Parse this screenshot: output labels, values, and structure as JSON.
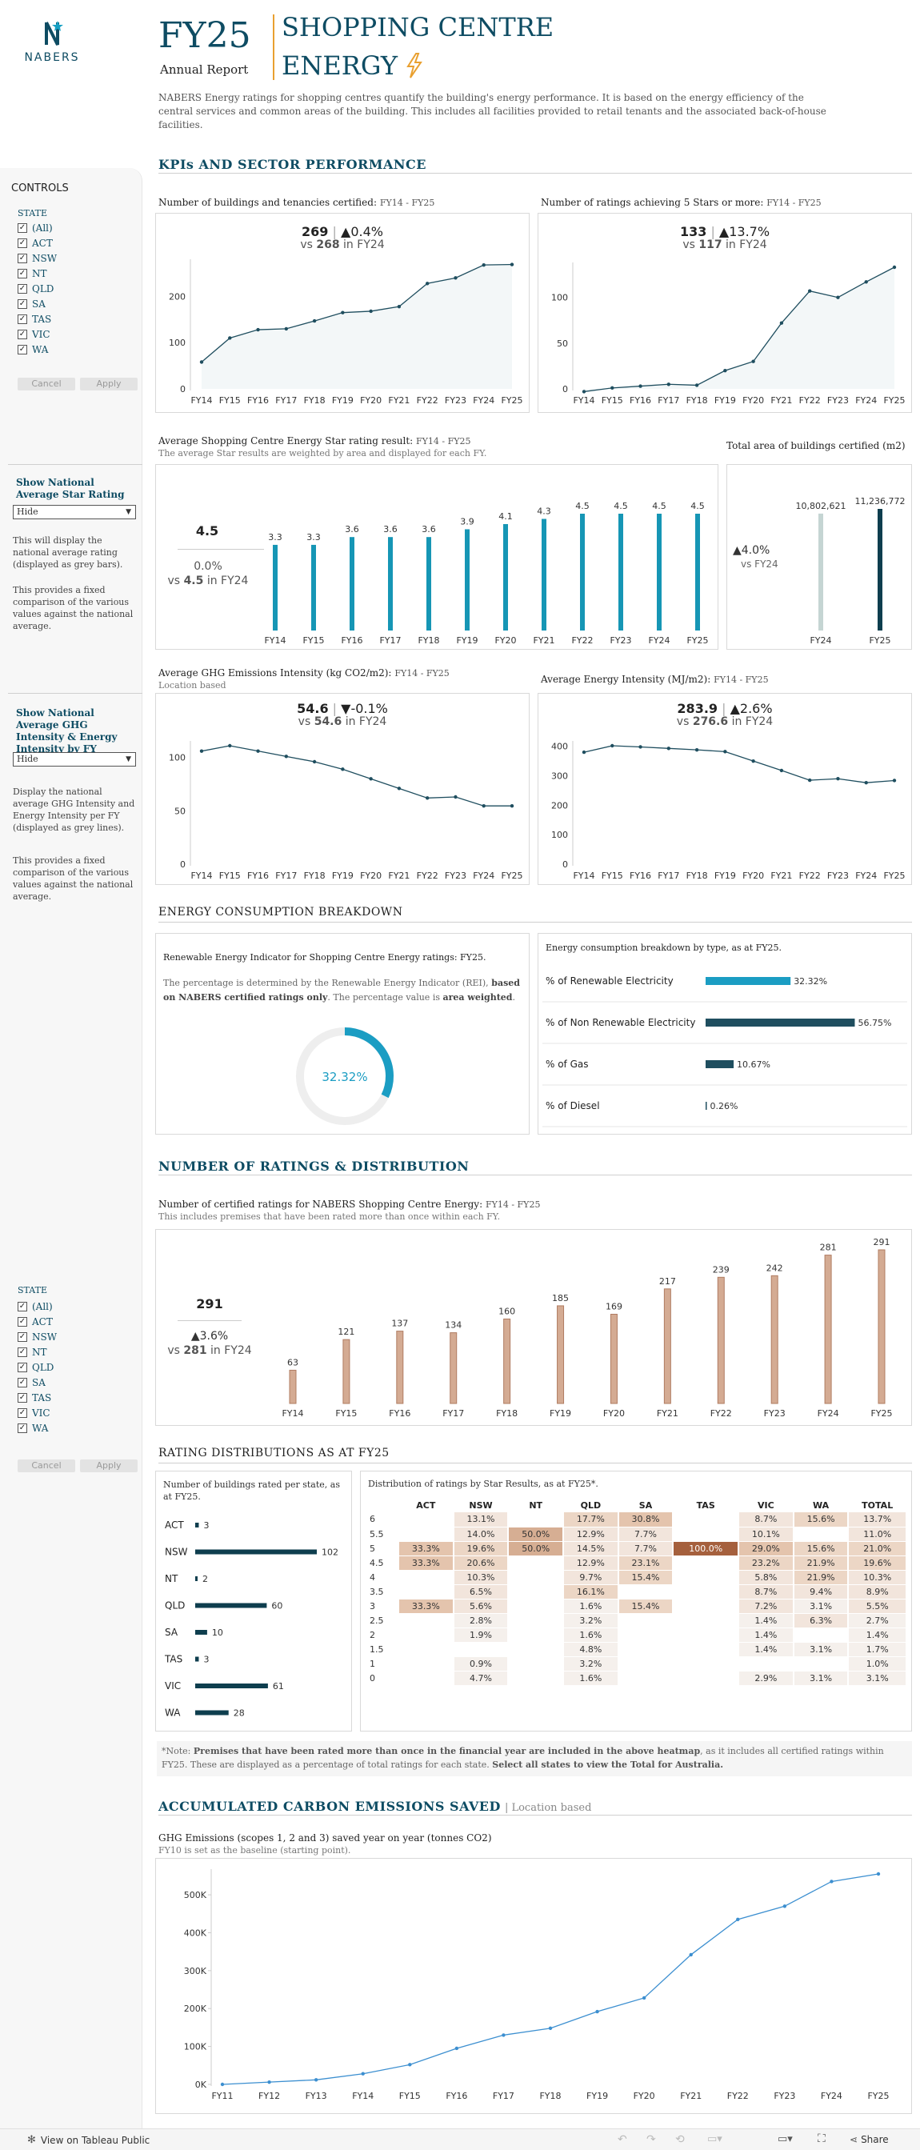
{
  "header": {
    "logo_text": "NABERS",
    "fy": "FY25",
    "report": "Annual Report",
    "title_line1": "SHOPPING CENTRE",
    "title_line2": "ENERGY",
    "intro": "NABERS Energy ratings for shopping centres quantify the building's energy performance. It is based on the energy efficiency of the central services and common areas of the building. This includes all facilities provided to retail tenants and the associated back-of-house facilities."
  },
  "sections": {
    "kpi": "KPIs AND SECTOR PERFORMANCE",
    "energy": "ENERGY CONSUMPTION BREAKDOWN",
    "ratings": "NUMBER OF RATINGS & DISTRIBUTION",
    "distributions": "RATING DISTRIBUTIONS AS AT FY25",
    "carbon": "ACCUMULATED CARBON EMISSIONS SAVED",
    "carbon_suffix": "| Location based"
  },
  "sidebar": {
    "controls": "CONTROLS",
    "state_label": "STATE",
    "states": [
      "(All)",
      "ACT",
      "NSW",
      "NT",
      "QLD",
      "SA",
      "TAS",
      "VIC",
      "WA"
    ],
    "cancel": "Cancel",
    "apply": "Apply",
    "star_heading": "Show National Average Star Rating",
    "star_dropdown": "Hide",
    "star_p1": "This will display the national average rating (displayed as grey bars).",
    "star_p2": "This provides a fixed comparison of the various values against the national average.",
    "ghg_heading": "Show National Average GHG Intensity & Energy Intensity by FY",
    "ghg_dropdown": "Hide",
    "ghg_p1": "Display the national average GHG Intensity and Energy Intensity per FY (displayed as grey lines).",
    "ghg_p2": "This provides a fixed comparison of the various values against the national average."
  },
  "kpi_buildings": {
    "title": "Number of buildings and tenancies certified:",
    "range": "FY14 - FY25",
    "value": "269",
    "change": "▲0.4%",
    "vs_prefix": "vs",
    "vs_value": "268",
    "vs_suffix": "in FY24"
  },
  "kpi_5stars": {
    "title": "Number of ratings achieving 5 Stars or more:",
    "range": "FY14 - FY25",
    "value": "133",
    "change": "▲13.7%",
    "vs_prefix": "vs",
    "vs_value": "117",
    "vs_suffix": "in FY24"
  },
  "star_rating": {
    "title": "Average Shopping Centre Energy Star rating result:",
    "range": "FY14 - FY25",
    "sub": "The average Star results are weighted by area and displayed for each FY.",
    "value": "4.5",
    "change": "0.0%",
    "vs_prefix": "vs",
    "vs_value": "4.5",
    "vs_suffix": "in FY24"
  },
  "area": {
    "title": "Total area of buildings certified (m2)",
    "change": "▲4.0%",
    "vs": "vs FY24"
  },
  "ghg": {
    "title": "Average GHG Emissions Intensity (kg CO2/m2):",
    "range": "FY14 - FY25",
    "sub": "Location based",
    "value": "54.6",
    "change": "▼-0.1%",
    "vs_prefix": "vs",
    "vs_value": "54.6",
    "vs_suffix": "in FY24"
  },
  "energy_int": {
    "title": "Average Energy Intensity (MJ/m2):",
    "range": "FY14 - FY25",
    "value": "283.9",
    "change": "▲2.6%",
    "vs_prefix": "vs",
    "vs_value": "276.6",
    "vs_suffix": "in FY24"
  },
  "renewable": {
    "title": "Renewable Energy Indicator for Shopping Centre Energy ratings:",
    "title_fy": "FY25.",
    "desc_a": "The percentage is determined by the Renewable Energy Indicator (REI),",
    "desc_b": "based on NABERS certified ratings only",
    "desc_c": ". The percentage value is",
    "desc_d": "area weighted",
    "desc_e": ".",
    "value_label": "32.32%",
    "fraction": 0.3232
  },
  "breakdown": {
    "title": "Energy consumption breakdown by type, as at",
    "title_fy": "FY25.",
    "rows": [
      {
        "label": "% of Renewable Electricity",
        "value": 32.32,
        "text": "32.32%",
        "color": "#1b9dc3"
      },
      {
        "label": "% of Non Renewable Electricity",
        "value": 56.75,
        "text": "56.75%",
        "color": "#1f4e5f"
      },
      {
        "label": "% of Gas",
        "value": 10.67,
        "text": "10.67%",
        "color": "#1f4e5f"
      },
      {
        "label": "% of Diesel",
        "value": 0.26,
        "text": "0.26%",
        "color": "#1f4e5f"
      }
    ]
  },
  "ratings_count": {
    "title": "Number of certified ratings for NABERS Shopping Centre Energy:",
    "range": "FY14 - FY25",
    "sub": "This includes premises that have been rated more than once within each FY.",
    "value": "291",
    "change": "▲3.6%",
    "vs_prefix": "vs",
    "vs_value": "281",
    "vs_suffix": "in FY24"
  },
  "state_panel": {
    "title": "Number of buildings rated per state, as at",
    "title_fy": "FY25."
  },
  "heatmap": {
    "title": "Distribution of ratings by Star Results, as at",
    "title_fy": "FY25*.",
    "columns": [
      "ACT",
      "NSW",
      "NT",
      "QLD",
      "SA",
      "TAS",
      "VIC",
      "WA",
      "TOTAL"
    ],
    "rows": [
      {
        "label": "6",
        "cells": [
          "",
          "13.1%",
          "",
          "17.7%",
          "30.8%",
          "",
          "8.7%",
          "15.6%",
          "13.7%"
        ]
      },
      {
        "label": "5.5",
        "cells": [
          "",
          "14.0%",
          "50.0%",
          "12.9%",
          "7.7%",
          "",
          "10.1%",
          "",
          "11.0%"
        ]
      },
      {
        "label": "5",
        "cells": [
          "33.3%",
          "19.6%",
          "50.0%",
          "14.5%",
          "7.7%",
          "100.0%",
          "29.0%",
          "15.6%",
          "21.0%"
        ]
      },
      {
        "label": "4.5",
        "cells": [
          "33.3%",
          "20.6%",
          "",
          "12.9%",
          "23.1%",
          "",
          "23.2%",
          "21.9%",
          "19.6%"
        ]
      },
      {
        "label": "4",
        "cells": [
          "",
          "10.3%",
          "",
          "9.7%",
          "15.4%",
          "",
          "5.8%",
          "21.9%",
          "10.3%"
        ]
      },
      {
        "label": "3.5",
        "cells": [
          "",
          "6.5%",
          "",
          "16.1%",
          "",
          "",
          "8.7%",
          "9.4%",
          "8.9%"
        ]
      },
      {
        "label": "3",
        "cells": [
          "33.3%",
          "5.6%",
          "",
          "1.6%",
          "15.4%",
          "",
          "7.2%",
          "3.1%",
          "5.5%"
        ]
      },
      {
        "label": "2.5",
        "cells": [
          "",
          "2.8%",
          "",
          "3.2%",
          "",
          "",
          "1.4%",
          "6.3%",
          "2.7%"
        ]
      },
      {
        "label": "2",
        "cells": [
          "",
          "1.9%",
          "",
          "1.6%",
          "",
          "",
          "1.4%",
          "",
          "1.4%"
        ]
      },
      {
        "label": "1.5",
        "cells": [
          "",
          "",
          "",
          "4.8%",
          "",
          "",
          "1.4%",
          "3.1%",
          "1.7%"
        ]
      },
      {
        "label": "1",
        "cells": [
          "",
          "0.9%",
          "",
          "3.2%",
          "",
          "",
          "",
          "",
          "1.0%"
        ]
      },
      {
        "label": "0",
        "cells": [
          "",
          "4.7%",
          "",
          "1.6%",
          "",
          "",
          "2.9%",
          "3.1%",
          "3.1%"
        ]
      }
    ]
  },
  "note": {
    "prefix": "*Note:",
    "bold1": "Premises that have been rated more than once in the financial year are included in the above heatmap",
    "mid": ", as it includes all certified ratings within FY25. These are displayed as a percentage of total ratings for each state.",
    "bold2": "Select all states to view the Total for Australia."
  },
  "carbon": {
    "title": "GHG Emissions (scopes 1, 2 and 3) saved year on year (tonnes CO2)",
    "sub": "FY10 is set as the baseline (starting point)."
  },
  "footer": {
    "view_link": "View on Tableau Public",
    "share": "Share"
  },
  "chart_data": [
    {
      "type": "area",
      "id": "buildings",
      "categories": [
        "FY14",
        "FY15",
        "FY16",
        "FY17",
        "FY18",
        "FY19",
        "FY20",
        "FY21",
        "FY22",
        "FY23",
        "FY24",
        "FY25"
      ],
      "values": [
        58,
        110,
        128,
        130,
        147,
        165,
        168,
        178,
        228,
        240,
        268,
        269
      ],
      "ylim": [
        0,
        270
      ],
      "yticks": [
        0,
        100,
        200
      ]
    },
    {
      "type": "area",
      "id": "five_star",
      "categories": [
        "FY14",
        "FY15",
        "FY16",
        "FY17",
        "FY18",
        "FY19",
        "FY20",
        "FY21",
        "FY22",
        "FY23",
        "FY24",
        "FY25"
      ],
      "values": [
        -3,
        1,
        3,
        5,
        4,
        20,
        30,
        72,
        107,
        100,
        117,
        133
      ],
      "ylim": [
        0,
        133
      ],
      "yticks": [
        0,
        50,
        100
      ]
    },
    {
      "type": "bar",
      "id": "star",
      "categories": [
        "FY14",
        "FY15",
        "FY16",
        "FY17",
        "FY18",
        "FY19",
        "FY20",
        "FY21",
        "FY22",
        "FY23",
        "FY24",
        "FY25"
      ],
      "values": [
        3.3,
        3.3,
        3.6,
        3.6,
        3.6,
        3.9,
        4.1,
        4.3,
        4.5,
        4.5,
        4.5,
        4.5
      ],
      "labels": [
        "3.3",
        "3.3",
        "3.6",
        "3.6",
        "3.6",
        "3.9",
        "4.1",
        "4.3",
        "4.5",
        "4.5",
        "4.5",
        "4.5"
      ],
      "ylim": [
        0,
        4.5
      ]
    },
    {
      "type": "bar",
      "id": "area",
      "categories": [
        "FY24",
        "FY25"
      ],
      "values": [
        10802621,
        11236772
      ],
      "labels": [
        "10,802,621",
        "11,236,772"
      ],
      "colors": [
        "#c5d5d3",
        "#0e3e4e"
      ],
      "ylim": [
        0,
        11236772
      ]
    },
    {
      "type": "area",
      "id": "ghg",
      "categories": [
        "FY14",
        "FY15",
        "FY16",
        "FY17",
        "FY18",
        "FY19",
        "FY20",
        "FY21",
        "FY22",
        "FY23",
        "FY24",
        "FY25"
      ],
      "values": [
        106,
        111,
        106,
        101,
        96,
        89,
        80,
        71,
        62,
        63,
        54.6,
        54.6
      ],
      "ylim": [
        0,
        111
      ],
      "yticks": [
        0,
        50,
        100
      ]
    },
    {
      "type": "area",
      "id": "energy",
      "categories": [
        "FY14",
        "FY15",
        "FY16",
        "FY17",
        "FY18",
        "FY19",
        "FY20",
        "FY21",
        "FY22",
        "FY23",
        "FY24",
        "FY25"
      ],
      "values": [
        380,
        402,
        398,
        393,
        388,
        382,
        350,
        318,
        285,
        290,
        276.6,
        283.9
      ],
      "ylim": [
        0,
        402
      ],
      "yticks": [
        0,
        100,
        200,
        300,
        400
      ]
    },
    {
      "type": "bar",
      "id": "ratings",
      "categories": [
        "FY14",
        "FY15",
        "FY16",
        "FY17",
        "FY18",
        "FY19",
        "FY20",
        "FY21",
        "FY22",
        "FY23",
        "FY24",
        "FY25"
      ],
      "values": [
        63,
        121,
        137,
        134,
        160,
        185,
        169,
        217,
        239,
        242,
        281,
        291
      ],
      "labels": [
        "63",
        "121",
        "137",
        "134",
        "160",
        "185",
        "169",
        "217",
        "239",
        "242",
        "281",
        "291"
      ],
      "ylim": [
        0,
        291
      ]
    },
    {
      "type": "bar",
      "id": "states",
      "categories": [
        "ACT",
        "NSW",
        "NT",
        "QLD",
        "SA",
        "TAS",
        "VIC",
        "WA"
      ],
      "values": [
        3,
        102,
        2,
        60,
        10,
        3,
        61,
        28
      ],
      "labels": [
        "3",
        "102",
        "2",
        "60",
        "10",
        "3",
        "61",
        "28"
      ],
      "xlim": [
        0,
        102
      ]
    },
    {
      "type": "line",
      "id": "carbon",
      "categories": [
        "FY11",
        "FY12",
        "FY13",
        "FY14",
        "FY15",
        "FY16",
        "FY17",
        "FY18",
        "FY19",
        "FY20",
        "FY21",
        "FY22",
        "FY23",
        "FY24",
        "FY25"
      ],
      "values": [
        0,
        6000,
        12000,
        28000,
        52000,
        95000,
        130000,
        148000,
        192000,
        228000,
        342000,
        435000,
        470000,
        535000,
        555000
      ],
      "ylim": [
        0,
        555000
      ],
      "yticks": [
        0,
        100000,
        200000,
        300000,
        400000,
        500000
      ],
      "ytick_labels": [
        "0K",
        "100K",
        "200K",
        "300K",
        "400K",
        "500K"
      ]
    }
  ]
}
